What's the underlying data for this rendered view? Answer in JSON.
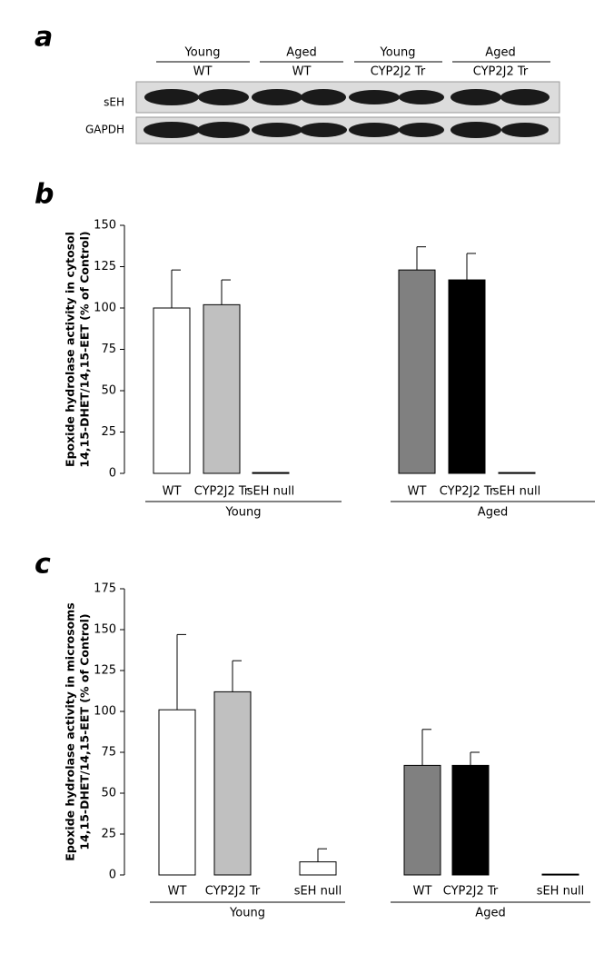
{
  "blot": {
    "panel": "a",
    "groups": [
      [
        "Young",
        "WT"
      ],
      [
        "Aged",
        "WT"
      ],
      [
        "Young",
        "CYP2J2 Tr"
      ],
      [
        "Aged",
        "CYP2J2 Tr"
      ]
    ],
    "rows": [
      "sEH",
      "GAPDH"
    ]
  },
  "chart_data": [
    {
      "type": "bar",
      "panel": "b",
      "y_label_lines": [
        "Epoxide hydrolase activity in cytosol",
        "14,15-DHET/14,15-EET (% of Control)"
      ],
      "categories": [
        "WT",
        "CYP2J2 Tr",
        "sEH null",
        "WT",
        "CYP2J2 Tr",
        "sEH null"
      ],
      "group_labels": [
        "Young",
        "Aged"
      ],
      "values": [
        100,
        102,
        0.5,
        123,
        117,
        0.5
      ],
      "errors": [
        23,
        15,
        null,
        14,
        16,
        null
      ],
      "colors": [
        "#ffffff",
        "#c0c0c0",
        "#ffffff",
        "#808080",
        "#000000",
        "#ffffff"
      ],
      "ylim": [
        0,
        150
      ],
      "yticks": [
        0,
        25,
        50,
        75,
        100,
        125,
        150
      ]
    },
    {
      "type": "bar",
      "panel": "c",
      "y_label_lines": [
        "Epoxide hydrolase activity in microsoms",
        "14,15-DHET/14,15-EET (% of Control)"
      ],
      "categories": [
        "WT",
        "CYP2J2 Tr",
        "sEH null",
        "WT",
        "CYP2J2 Tr",
        "sEH null"
      ],
      "group_labels": [
        "Young",
        "Aged"
      ],
      "values": [
        101,
        112,
        8,
        67,
        67,
        0.5
      ],
      "errors": [
        46,
        19,
        8,
        22,
        8,
        null
      ],
      "colors": [
        "#ffffff",
        "#c0c0c0",
        "#ffffff",
        "#808080",
        "#000000",
        "#ffffff"
      ],
      "ylim": [
        0,
        175
      ],
      "yticks": [
        0,
        25,
        50,
        75,
        100,
        125,
        150,
        175
      ]
    }
  ]
}
